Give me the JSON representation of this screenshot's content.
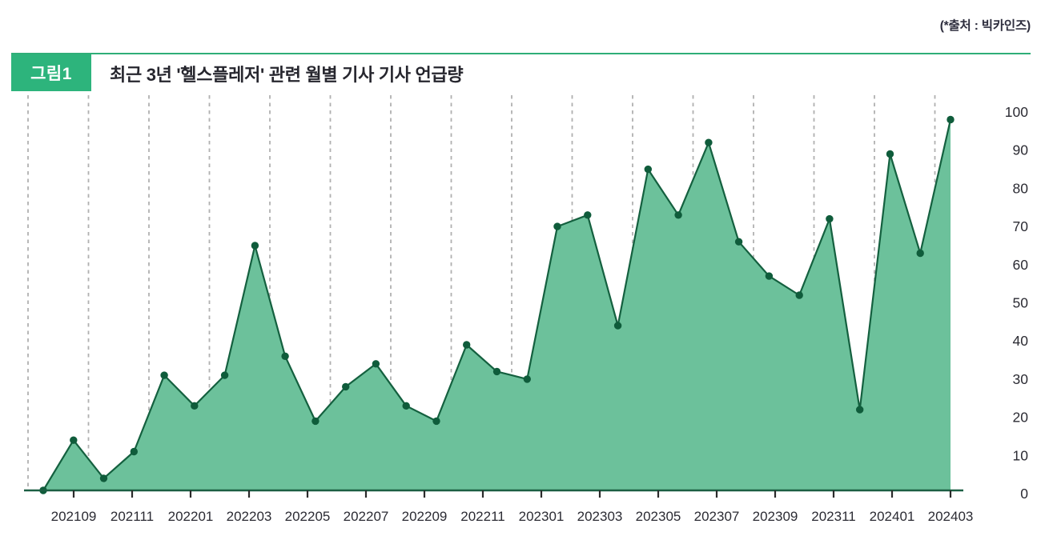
{
  "header": {
    "badge_label": "그림1",
    "title": "최근 3년 '헬스플레저' 관련 월별 기사 기사 언급량",
    "source_note": "(*출처 : 빅카인즈)"
  },
  "chart_data": {
    "type": "area",
    "title": "최근 3년 '헬스플레저' 관련 월별 기사 기사 언급량",
    "x": [
      "202109",
      "202110",
      "202111",
      "202112",
      "202201",
      "202202",
      "202203",
      "202204",
      "202205",
      "202206",
      "202207",
      "202208",
      "202209",
      "202210",
      "202211",
      "202212",
      "202301",
      "202302",
      "202303",
      "202304",
      "202305",
      "202306",
      "202307",
      "202308",
      "202309",
      "202310",
      "202311",
      "202312",
      "202401",
      "202402",
      "202403"
    ],
    "values": [
      0,
      14,
      4,
      11,
      31,
      23,
      31,
      65,
      36,
      19,
      28,
      34,
      23,
      19,
      39,
      32,
      30,
      70,
      73,
      44,
      85,
      73,
      92,
      66,
      57,
      52,
      72,
      22,
      89,
      63,
      98
    ],
    "x_tick_labels": [
      "202109",
      "202111",
      "202201",
      "202203",
      "202205",
      "202207",
      "202209",
      "202211",
      "202301",
      "202303",
      "202305",
      "202307",
      "202309",
      "202311",
      "202401",
      "202403"
    ],
    "y_ticks": [
      0,
      10,
      20,
      30,
      40,
      50,
      60,
      70,
      80,
      90,
      100
    ],
    "ylim": [
      0,
      100
    ],
    "xlabel": "",
    "ylabel": "",
    "grid": "vertical-dashed",
    "legend": "none",
    "y_axis_side": "right",
    "colors": {
      "area_fill": "#6cc19b",
      "line": "#14603f",
      "dot": "#0f5c3b",
      "axis": "#1b5f43",
      "tick": "#2b2b2b",
      "gridline": "#b0b0b0",
      "axis_label": "#2b2b33",
      "badge_bg": "#2db47c",
      "rule": "#2fae78"
    }
  }
}
